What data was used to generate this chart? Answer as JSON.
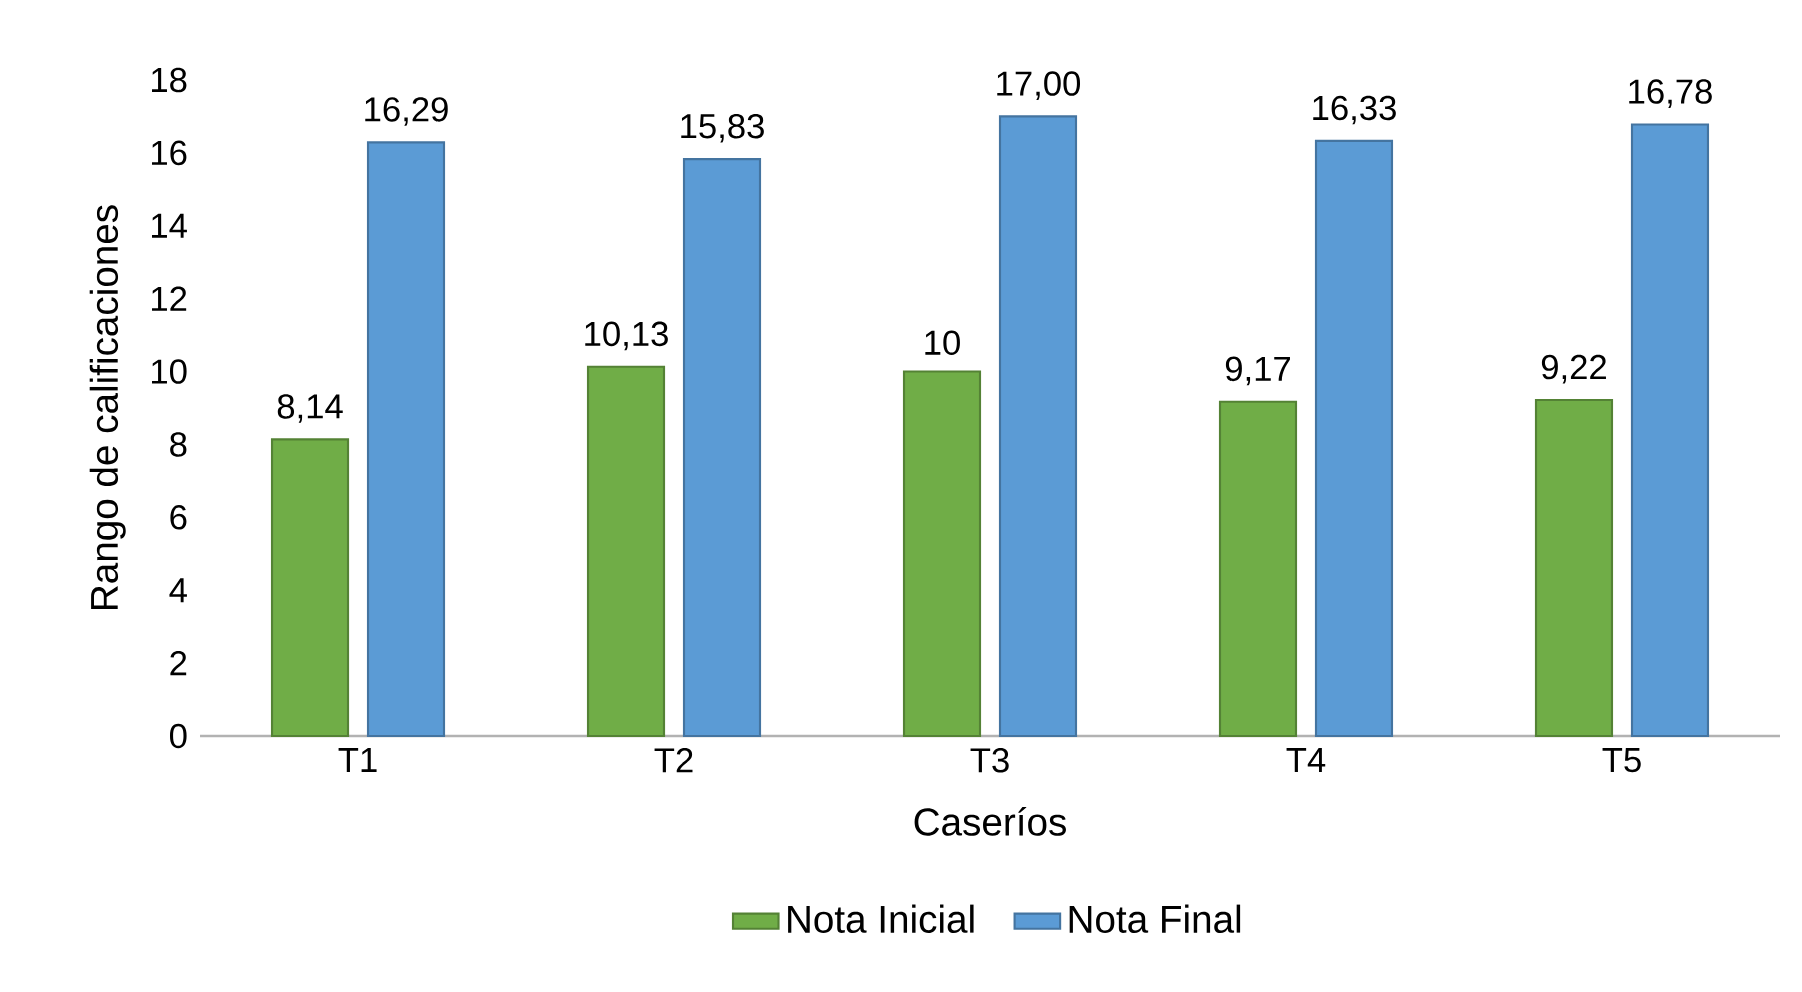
{
  "chart_data": {
    "type": "bar",
    "xlabel": "Caseríos",
    "ylabel": "Rango de calificaciones",
    "categories": [
      "T1",
      "T2",
      "T3",
      "T4",
      "T5"
    ],
    "series": [
      {
        "name": "Nota Inicial",
        "color": "#70ad47",
        "values": [
          8.14,
          10.13,
          10,
          9.17,
          9.22
        ],
        "value_labels": [
          "8,14",
          "10,13",
          "10",
          "9,17",
          "9,22"
        ]
      },
      {
        "name": "Nota Final",
        "color": "#5b9bd5",
        "values": [
          16.29,
          15.83,
          17.0,
          16.33,
          16.78
        ],
        "value_labels": [
          "16,29",
          "15,83",
          "17,00",
          "16,33",
          "16,78"
        ]
      }
    ],
    "ylim": [
      0,
      18
    ],
    "yticks": [
      0,
      2,
      4,
      6,
      8,
      10,
      12,
      14,
      16,
      18
    ],
    "grid": false,
    "legend": "bottom"
  }
}
